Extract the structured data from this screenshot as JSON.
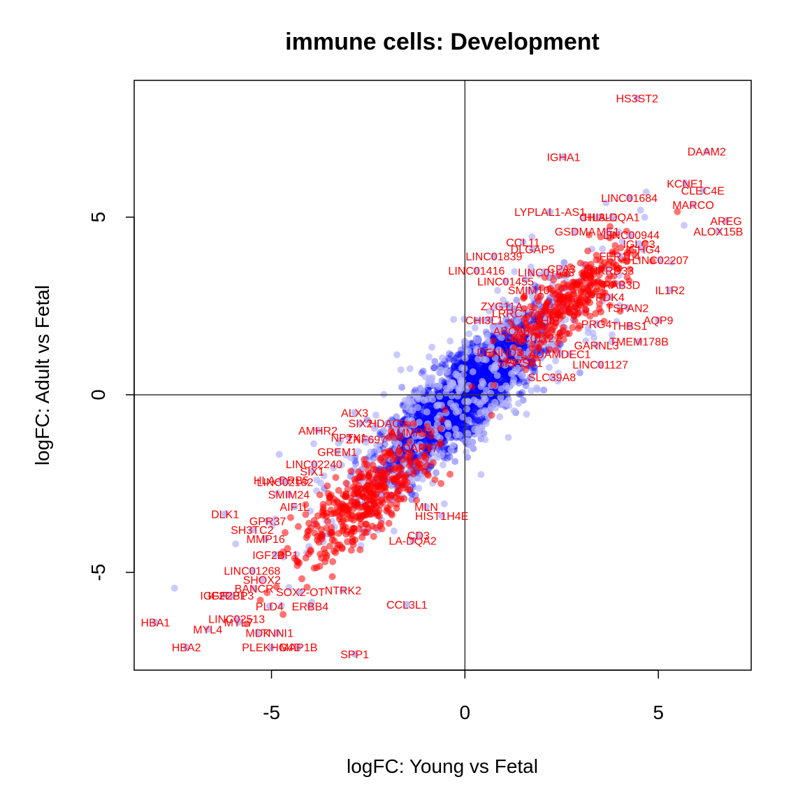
{
  "chart_data": {
    "type": "scatter",
    "title": "immune cells: Development",
    "xlabel": "logFC: Young vs Fetal",
    "ylabel": "logFC: Adult vs Fetal",
    "xlim": [
      -8.55,
      7.4
    ],
    "ylim": [
      -7.75,
      8.85
    ],
    "xticks": [
      -5,
      0,
      5
    ],
    "yticks": [
      -5,
      0,
      5
    ],
    "xtick_labels": [
      "-5",
      "0",
      "5"
    ],
    "ytick_labels": [
      "-5",
      "0",
      "5"
    ],
    "reference_lines": {
      "x": 0,
      "y": 0
    },
    "colors": {
      "points": "#0000ff",
      "highlighted_points": "#ff0000",
      "label_text": "#ff0000",
      "outlier_points": "#b4b4ff"
    },
    "labeled_genes": [
      {
        "label": "HS3ST2",
        "x": 4.45,
        "y": 8.35
      },
      {
        "label": "DAAM2",
        "x": 6.25,
        "y": 6.85
      },
      {
        "label": "IGHA1",
        "x": 2.55,
        "y": 6.7
      },
      {
        "label": "KCNE1",
        "x": 5.7,
        "y": 5.95
      },
      {
        "label": "CLEC4E",
        "x": 6.15,
        "y": 5.75
      },
      {
        "label": "LINC01684",
        "x": 4.25,
        "y": 5.55
      },
      {
        "label": "MARCO",
        "x": 5.9,
        "y": 5.35
      },
      {
        "label": "LYPLAL1-AS1",
        "x": 2.2,
        "y": 5.15
      },
      {
        "label": "CHI3L2",
        "x": 3.45,
        "y": 5.0
      },
      {
        "label": "HLA-DQA1",
        "x": 3.8,
        "y": 5.0
      },
      {
        "label": "AREG",
        "x": 6.75,
        "y": 4.9
      },
      {
        "label": "ALOX15B",
        "x": 6.55,
        "y": 4.6
      },
      {
        "label": "GSDMA",
        "x": 2.85,
        "y": 4.6
      },
      {
        "label": "ME1",
        "x": 3.7,
        "y": 4.6
      },
      {
        "label": "LINC00944",
        "x": 4.3,
        "y": 4.5
      },
      {
        "label": "CCL11",
        "x": 1.5,
        "y": 4.3
      },
      {
        "label": "IGLC3",
        "x": 4.5,
        "y": 4.25
      },
      {
        "label": "DLGAP5",
        "x": 1.75,
        "y": 4.1
      },
      {
        "label": "IGHG4",
        "x": 4.6,
        "y": 4.1
      },
      {
        "label": "LINC01839",
        "x": 0.75,
        "y": 3.9
      },
      {
        "label": "FER1L4",
        "x": 4.0,
        "y": 3.9
      },
      {
        "label": "LINC02207",
        "x": 5.05,
        "y": 3.8
      },
      {
        "label": "LINC01416",
        "x": 0.3,
        "y": 3.5
      },
      {
        "label": "LINC01433",
        "x": 2.1,
        "y": 3.45
      },
      {
        "label": "CPA3",
        "x": 2.5,
        "y": 3.55
      },
      {
        "label": "ANKRD33",
        "x": 3.7,
        "y": 3.5
      },
      {
        "label": "LINC01455",
        "x": 1.05,
        "y": 3.2
      },
      {
        "label": "SMIM10",
        "x": 1.65,
        "y": 2.95
      },
      {
        "label": "RAB3D",
        "x": 4.05,
        "y": 3.1
      },
      {
        "label": "IL1R2",
        "x": 5.3,
        "y": 2.95
      },
      {
        "label": "PDK4",
        "x": 3.75,
        "y": 2.75
      },
      {
        "label": "ZYG11A",
        "x": 0.95,
        "y": 2.5
      },
      {
        "label": "TSPAN2",
        "x": 4.2,
        "y": 2.45
      },
      {
        "label": "LRRC17",
        "x": 1.25,
        "y": 2.3
      },
      {
        "label": "CHI3L1",
        "x": 0.5,
        "y": 2.1
      },
      {
        "label": "HHIP",
        "x": 2.1,
        "y": 2.1
      },
      {
        "label": "PRG4",
        "x": 3.4,
        "y": 2.0
      },
      {
        "label": "THBS1",
        "x": 4.25,
        "y": 1.95
      },
      {
        "label": "AQP9",
        "x": 5.0,
        "y": 2.1
      },
      {
        "label": "ABCA6",
        "x": 1.2,
        "y": 1.8
      },
      {
        "label": "LINC01127",
        "x": 1.75,
        "y": 1.6
      },
      {
        "label": "TMEM178B",
        "x": 4.5,
        "y": 1.5
      },
      {
        "label": "GARNL3",
        "x": 3.4,
        "y": 1.4
      },
      {
        "label": "DENND3",
        "x": 0.9,
        "y": 1.2
      },
      {
        "label": "ADAMDEC1",
        "x": 2.45,
        "y": 1.15
      },
      {
        "label": "SPP2",
        "x": 1.2,
        "y": 0.9
      },
      {
        "label": "SPSB1",
        "x": 1.55,
        "y": 0.9
      },
      {
        "label": "LINC01127",
        "x": 3.5,
        "y": 0.85
      },
      {
        "label": "SLC39A8",
        "x": 2.25,
        "y": 0.5
      },
      {
        "label": "ALX3",
        "x": -2.85,
        "y": -0.5
      },
      {
        "label": "SIX2",
        "x": -2.7,
        "y": -0.8
      },
      {
        "label": "HDAC9",
        "x": -2.0,
        "y": -0.8
      },
      {
        "label": "AMHR2",
        "x": -3.8,
        "y": -1.0
      },
      {
        "label": "AMMP1",
        "x": -1.45,
        "y": -1.05
      },
      {
        "label": "NPTX1",
        "x": -3.0,
        "y": -1.2
      },
      {
        "label": "ZNF697",
        "x": -2.55,
        "y": -1.25
      },
      {
        "label": "ADAP17",
        "x": -1.25,
        "y": -1.5
      },
      {
        "label": "GREM1",
        "x": -3.3,
        "y": -1.6
      },
      {
        "label": "LINC02240",
        "x": -3.9,
        "y": -1.95
      },
      {
        "label": "SIX1",
        "x": -3.95,
        "y": -2.15
      },
      {
        "label": "HLA-DRB5",
        "x": -4.75,
        "y": -2.4
      },
      {
        "label": "LINC02182",
        "x": -4.65,
        "y": -2.45
      },
      {
        "label": "SMIM24",
        "x": -4.55,
        "y": -2.8
      },
      {
        "label": "AIF1L",
        "x": -4.4,
        "y": -3.15
      },
      {
        "label": "DLK1",
        "x": -6.2,
        "y": -3.35
      },
      {
        "label": "GPR37",
        "x": -5.1,
        "y": -3.55
      },
      {
        "label": "SH3TC2",
        "x": -5.5,
        "y": -3.8
      },
      {
        "label": "MMP16",
        "x": -5.15,
        "y": -4.05
      },
      {
        "label": "IGF2BP1",
        "x": -4.9,
        "y": -4.5
      },
      {
        "label": "LINC01268",
        "x": -5.5,
        "y": -4.95
      },
      {
        "label": "SHOX2",
        "x": -5.25,
        "y": -5.2
      },
      {
        "label": "BANCR",
        "x": -5.45,
        "y": -5.45
      },
      {
        "label": "IGF2BP1",
        "x": -6.25,
        "y": -5.65
      },
      {
        "label": "IGF2BP3",
        "x": -6.05,
        "y": -5.65
      },
      {
        "label": "SOX2-OT",
        "x": -4.25,
        "y": -5.55
      },
      {
        "label": "NTRK2",
        "x": -3.15,
        "y": -5.5
      },
      {
        "label": "PLD4",
        "x": -5.05,
        "y": -5.95
      },
      {
        "label": "ERBB4",
        "x": -4.0,
        "y": -5.95
      },
      {
        "label": "CCL3L1",
        "x": -1.5,
        "y": -5.9
      },
      {
        "label": "LINC02513",
        "x": -5.9,
        "y": -6.3
      },
      {
        "label": "MYL7",
        "x": -5.85,
        "y": -6.4
      },
      {
        "label": "HBA1",
        "x": -8.0,
        "y": -6.4
      },
      {
        "label": "MYL4",
        "x": -6.65,
        "y": -6.6
      },
      {
        "label": "MDK",
        "x": -5.35,
        "y": -6.7
      },
      {
        "label": "TNNI1",
        "x": -4.85,
        "y": -6.7
      },
      {
        "label": "HBA2",
        "x": -7.2,
        "y": -7.1
      },
      {
        "label": "PLEKHG4B",
        "x": -5.0,
        "y": -7.1
      },
      {
        "label": "MAP1B",
        "x": -4.3,
        "y": -7.1
      },
      {
        "label": "SPP1",
        "x": -2.85,
        "y": -7.3
      },
      {
        "label": "HIST1H4E",
        "x": -0.6,
        "y": -3.4
      },
      {
        "label": "LA-DQA2",
        "x": -1.35,
        "y": -4.1
      },
      {
        "label": "MLN",
        "x": -1.0,
        "y": -3.15
      },
      {
        "label": "CD3",
        "x": -1.2,
        "y": -3.95
      }
    ]
  }
}
